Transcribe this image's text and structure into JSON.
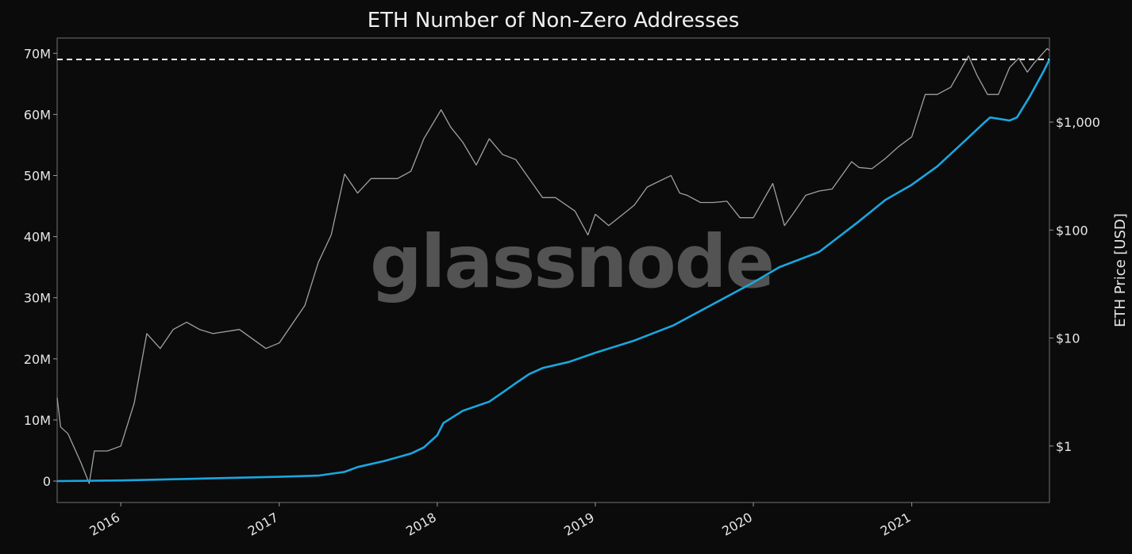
{
  "chart_data": {
    "type": "line",
    "title": "ETH Number of Non-Zero Addresses",
    "watermark": "glassnode",
    "x_ticks": [
      "2016",
      "2017",
      "2018",
      "2019",
      "2020",
      "2021"
    ],
    "y_left": {
      "ticks": [
        0,
        10000000,
        20000000,
        30000000,
        40000000,
        50000000,
        60000000,
        70000000
      ],
      "tick_labels": [
        "0",
        "10M",
        "20M",
        "30M",
        "40M",
        "50M",
        "60M",
        "70M"
      ],
      "range": [
        -3500000,
        72500000
      ]
    },
    "y_right": {
      "label": "ETH Price [USD]",
      "scale": "log",
      "ticks": [
        1,
        10,
        100,
        1000
      ],
      "tick_labels": [
        "$1",
        "$10",
        "$100",
        "$1,000"
      ],
      "range": [
        0.3,
        6000
      ]
    },
    "x_range": [
      "2015-08-07",
      "2021-11-15"
    ],
    "reference_line": {
      "value": 69000000,
      "style": "dashed",
      "color": "#ffffff"
    },
    "series": [
      {
        "axis": "left",
        "color": "#1aa7e0",
        "points": [
          [
            "2015-08-07",
            0
          ],
          [
            "2016-01-01",
            100000
          ],
          [
            "2016-07-01",
            400000
          ],
          [
            "2017-01-01",
            700000
          ],
          [
            "2017-04-01",
            900000
          ],
          [
            "2017-06-01",
            1500000
          ],
          [
            "2017-07-01",
            2300000
          ],
          [
            "2017-09-01",
            3300000
          ],
          [
            "2017-11-01",
            4500000
          ],
          [
            "2017-12-01",
            5500000
          ],
          [
            "2018-01-01",
            7500000
          ],
          [
            "2018-01-15",
            9500000
          ],
          [
            "2018-03-01",
            11500000
          ],
          [
            "2018-05-01",
            13000000
          ],
          [
            "2018-06-01",
            14500000
          ],
          [
            "2018-07-01",
            16000000
          ],
          [
            "2018-08-01",
            17500000
          ],
          [
            "2018-09-01",
            18500000
          ],
          [
            "2018-11-01",
            19500000
          ],
          [
            "2019-01-01",
            21000000
          ],
          [
            "2019-04-01",
            23000000
          ],
          [
            "2019-07-01",
            25500000
          ],
          [
            "2019-10-01",
            29000000
          ],
          [
            "2020-01-01",
            32500000
          ],
          [
            "2020-03-01",
            35000000
          ],
          [
            "2020-06-01",
            37500000
          ],
          [
            "2020-09-01",
            42500000
          ],
          [
            "2020-11-01",
            46000000
          ],
          [
            "2021-01-01",
            48500000
          ],
          [
            "2021-03-01",
            51500000
          ],
          [
            "2021-05-01",
            55500000
          ],
          [
            "2021-06-15",
            58500000
          ],
          [
            "2021-07-01",
            59500000
          ],
          [
            "2021-08-15",
            59000000
          ],
          [
            "2021-09-01",
            59500000
          ],
          [
            "2021-10-01",
            63000000
          ],
          [
            "2021-11-01",
            67000000
          ],
          [
            "2021-11-15",
            69000000
          ]
        ]
      },
      {
        "axis": "right",
        "color": "#a0a0a0",
        "points": [
          [
            "2015-08-07",
            2.8
          ],
          [
            "2015-08-15",
            1.5
          ],
          [
            "2015-09-01",
            1.3
          ],
          [
            "2015-10-01",
            0.7
          ],
          [
            "2015-10-20",
            0.45
          ],
          [
            "2015-11-01",
            0.9
          ],
          [
            "2015-12-01",
            0.9
          ],
          [
            "2016-01-01",
            1.0
          ],
          [
            "2016-02-01",
            2.5
          ],
          [
            "2016-03-01",
            11
          ],
          [
            "2016-04-01",
            8
          ],
          [
            "2016-05-01",
            12
          ],
          [
            "2016-06-01",
            14
          ],
          [
            "2016-07-01",
            12
          ],
          [
            "2016-08-01",
            11
          ],
          [
            "2016-10-01",
            12
          ],
          [
            "2016-12-01",
            8
          ],
          [
            "2017-01-01",
            9
          ],
          [
            "2017-03-01",
            20
          ],
          [
            "2017-04-01",
            50
          ],
          [
            "2017-05-01",
            90
          ],
          [
            "2017-06-01",
            330
          ],
          [
            "2017-07-01",
            220
          ],
          [
            "2017-08-01",
            300
          ],
          [
            "2017-09-01",
            300
          ],
          [
            "2017-10-01",
            300
          ],
          [
            "2017-11-01",
            350
          ],
          [
            "2017-12-01",
            700
          ],
          [
            "2018-01-10",
            1300
          ],
          [
            "2018-02-01",
            900
          ],
          [
            "2018-03-01",
            650
          ],
          [
            "2018-04-01",
            400
          ],
          [
            "2018-05-01",
            700
          ],
          [
            "2018-06-01",
            500
          ],
          [
            "2018-07-01",
            450
          ],
          [
            "2018-08-01",
            300
          ],
          [
            "2018-09-01",
            200
          ],
          [
            "2018-10-01",
            200
          ],
          [
            "2018-11-15",
            150
          ],
          [
            "2018-12-15",
            90
          ],
          [
            "2019-01-01",
            140
          ],
          [
            "2019-02-01",
            110
          ],
          [
            "2019-03-01",
            135
          ],
          [
            "2019-04-01",
            170
          ],
          [
            "2019-05-01",
            250
          ],
          [
            "2019-06-25",
            320
          ],
          [
            "2019-07-15",
            220
          ],
          [
            "2019-08-01",
            210
          ],
          [
            "2019-09-01",
            180
          ],
          [
            "2019-10-01",
            180
          ],
          [
            "2019-11-01",
            185
          ],
          [
            "2019-12-01",
            130
          ],
          [
            "2020-01-01",
            130
          ],
          [
            "2020-02-15",
            270
          ],
          [
            "2020-03-13",
            110
          ],
          [
            "2020-04-01",
            140
          ],
          [
            "2020-05-01",
            210
          ],
          [
            "2020-06-01",
            230
          ],
          [
            "2020-07-01",
            240
          ],
          [
            "2020-08-15",
            430
          ],
          [
            "2020-09-01",
            380
          ],
          [
            "2020-10-01",
            370
          ],
          [
            "2020-11-01",
            460
          ],
          [
            "2020-12-01",
            590
          ],
          [
            "2021-01-01",
            730
          ],
          [
            "2021-02-01",
            1800
          ],
          [
            "2021-03-01",
            1800
          ],
          [
            "2021-04-01",
            2100
          ],
          [
            "2021-05-12",
            4100
          ],
          [
            "2021-06-01",
            2700
          ],
          [
            "2021-06-25",
            1800
          ],
          [
            "2021-07-20",
            1800
          ],
          [
            "2021-08-15",
            3200
          ],
          [
            "2021-09-05",
            3900
          ],
          [
            "2021-09-25",
            2900
          ],
          [
            "2021-10-10",
            3500
          ],
          [
            "2021-10-30",
            4300
          ],
          [
            "2021-11-10",
            4800
          ],
          [
            "2021-11-15",
            4600
          ]
        ]
      }
    ]
  }
}
